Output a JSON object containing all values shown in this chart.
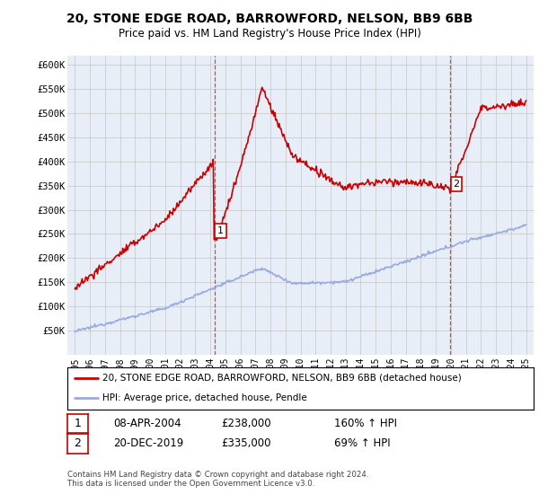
{
  "title": "20, STONE EDGE ROAD, BARROWFORD, NELSON, BB9 6BB",
  "subtitle": "Price paid vs. HM Land Registry's House Price Index (HPI)",
  "title_fontsize": 10,
  "subtitle_fontsize": 8.5,
  "background_color": "#ffffff",
  "grid_color": "#cccccc",
  "plot_bg": "#e8eef8",
  "red_color": "#cc0000",
  "blue_color": "#99aadd",
  "purchase1": {
    "date_num": 2004.27,
    "price": 238000,
    "label": "1"
  },
  "purchase2": {
    "date_num": 2019.97,
    "price": 335000,
    "label": "2"
  },
  "ylim": [
    0,
    620000
  ],
  "yticks": [
    50000,
    100000,
    150000,
    200000,
    250000,
    300000,
    350000,
    400000,
    450000,
    500000,
    550000,
    600000
  ],
  "xlim": [
    1994.5,
    2025.5
  ],
  "xticks": [
    1995,
    1996,
    1997,
    1998,
    1999,
    2000,
    2001,
    2002,
    2003,
    2004,
    2005,
    2006,
    2007,
    2008,
    2009,
    2010,
    2011,
    2012,
    2013,
    2014,
    2015,
    2016,
    2017,
    2018,
    2019,
    2020,
    2021,
    2022,
    2023,
    2024,
    2025
  ],
  "legend1": "20, STONE EDGE ROAD, BARROWFORD, NELSON, BB9 6BB (detached house)",
  "legend2": "HPI: Average price, detached house, Pendle",
  "annot1_date": "08-APR-2004",
  "annot1_price": "£238,000",
  "annot1_hpi": "160% ↑ HPI",
  "annot2_date": "20-DEC-2019",
  "annot2_price": "£335,000",
  "annot2_hpi": "69% ↑ HPI",
  "footer": "Contains HM Land Registry data © Crown copyright and database right 2024.\nThis data is licensed under the Open Government Licence v3.0."
}
